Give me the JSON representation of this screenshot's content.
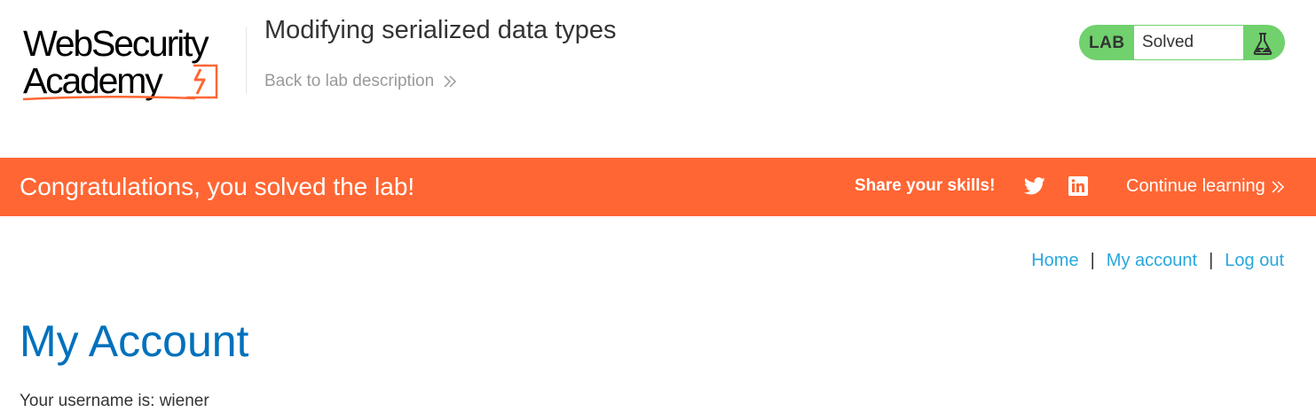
{
  "header": {
    "logo": {
      "line1": "WebSecurity",
      "line2": "Academy"
    },
    "lab_title": "Modifying serialized data types",
    "back_link": "Back to lab description"
  },
  "status": {
    "badge": "LAB",
    "value": "Solved",
    "color": "#70d16d"
  },
  "banner": {
    "message": "Congratulations, you solved the lab!",
    "share_label": "Share your skills!",
    "continue_label": "Continue learning",
    "color": "#ff6633",
    "icons": [
      "twitter-icon",
      "linkedin-icon"
    ]
  },
  "nav": {
    "items": [
      "Home",
      "My account",
      "Log out"
    ],
    "separator": "|"
  },
  "main": {
    "title": "My Account",
    "username_text": "Your username is: wiener"
  }
}
